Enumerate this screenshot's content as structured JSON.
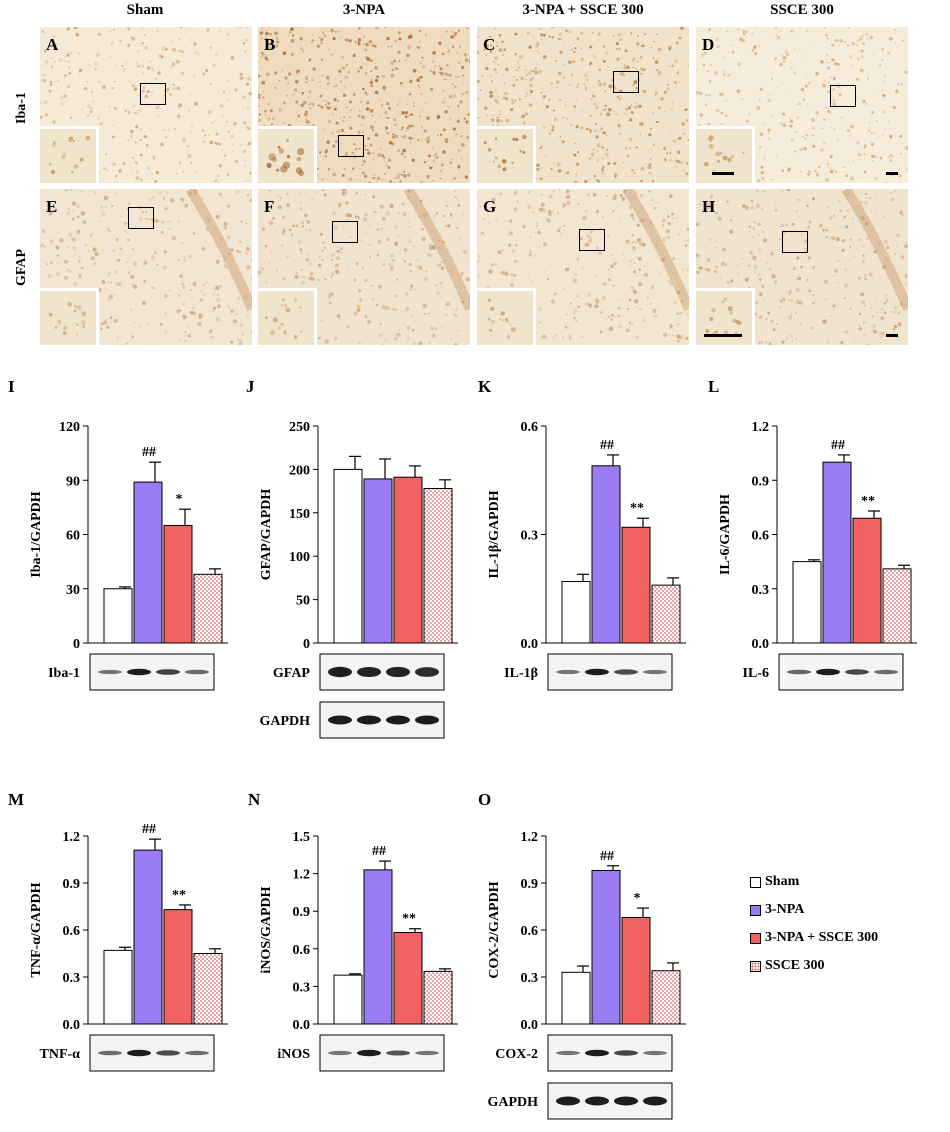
{
  "figure": {
    "column_titles": [
      "Sham",
      "3-NPA",
      "3-NPA + SSCE 300",
      "SSCE 300"
    ],
    "row_labels": [
      "Iba-1",
      "GFAP"
    ],
    "micro_panels": [
      {
        "letter": "A",
        "row": 0,
        "col": 0,
        "tone": "#f4ead6",
        "dot": "#c99a63",
        "density": 0.35
      },
      {
        "letter": "B",
        "row": 0,
        "col": 1,
        "tone": "#efdcbf",
        "dot": "#a8652e",
        "density": 0.9
      },
      {
        "letter": "C",
        "row": 0,
        "col": 2,
        "tone": "#f1e3cb",
        "dot": "#b37a42",
        "density": 0.6
      },
      {
        "letter": "D",
        "row": 0,
        "col": 3,
        "tone": "#f5ecd9",
        "dot": "#c9a06b",
        "density": 0.3
      },
      {
        "letter": "E",
        "row": 1,
        "col": 0,
        "tone": "#f2e6d2",
        "dot": "#c9a27a",
        "density": 0.3
      },
      {
        "letter": "F",
        "row": 1,
        "col": 1,
        "tone": "#f1e4cf",
        "dot": "#c49c72",
        "density": 0.35
      },
      {
        "letter": "G",
        "row": 1,
        "col": 2,
        "tone": "#f2e6d1",
        "dot": "#c7a078",
        "density": 0.3
      },
      {
        "letter": "H",
        "row": 1,
        "col": 3,
        "tone": "#f1e4cf",
        "dot": "#c49c72",
        "density": 0.3
      }
    ],
    "legend": [
      {
        "label": "Sham",
        "fill": "#ffffff",
        "pattern": "none"
      },
      {
        "label": "3-NPA",
        "fill": "#9b7bf2",
        "pattern": "none"
      },
      {
        "label": "3-NPA + SSCE 300",
        "fill": "#f26262",
        "pattern": "none"
      },
      {
        "label": "SSCE 300",
        "fill": "#ffffff",
        "pattern": "dots"
      }
    ],
    "colors": {
      "sham": "#ffffff",
      "npa": "#9b7bf2",
      "npa_ssce": "#f26262",
      "ssce_dots": "#e06060"
    }
  },
  "chart_data": [
    {
      "panel": "I",
      "type": "bar",
      "ylabel": "Iba-1/GAPDH",
      "ylim": [
        0,
        120
      ],
      "ticks": [
        "0",
        "30",
        "60",
        "90",
        "120"
      ],
      "categories": [
        "Sham",
        "3-NPA",
        "3-NPA + SSCE 300",
        "SSCE 300"
      ],
      "values": [
        30,
        89,
        65,
        38
      ],
      "errors": [
        1,
        11,
        9,
        3
      ],
      "marks": [
        "",
        "##",
        "*",
        ""
      ],
      "blots": [
        "Iba-1"
      ]
    },
    {
      "panel": "J",
      "type": "bar",
      "ylabel": "GFAP/GAPDH",
      "ylim": [
        0,
        250
      ],
      "ticks": [
        "0",
        "50",
        "100",
        "150",
        "200",
        "250"
      ],
      "categories": [
        "Sham",
        "3-NPA",
        "3-NPA + SSCE 300",
        "SSCE 300"
      ],
      "values": [
        200,
        189,
        191,
        178
      ],
      "errors": [
        15,
        23,
        13,
        10
      ],
      "marks": [
        "",
        "",
        "",
        ""
      ],
      "blots": [
        "GFAP",
        "GAPDH"
      ]
    },
    {
      "panel": "K",
      "type": "bar",
      "ylabel": "IL-1β/GAPDH",
      "ylim": [
        0,
        0.6
      ],
      "ticks": [
        "0.0",
        "0.3",
        "0.6"
      ],
      "categories": [
        "Sham",
        "3-NPA",
        "3-NPA + SSCE 300",
        "SSCE 300"
      ],
      "values": [
        0.17,
        0.49,
        0.32,
        0.16
      ],
      "errors": [
        0.02,
        0.03,
        0.025,
        0.02
      ],
      "marks": [
        "",
        "##",
        "**",
        ""
      ],
      "blots": [
        "IL-1β"
      ]
    },
    {
      "panel": "L",
      "type": "bar",
      "ylabel": "IL-6/GAPDH",
      "ylim": [
        0,
        1.2
      ],
      "ticks": [
        "0.0",
        "0.3",
        "0.6",
        "0.9",
        "1.2"
      ],
      "categories": [
        "Sham",
        "3-NPA",
        "3-NPA + SSCE 300",
        "SSCE 300"
      ],
      "values": [
        0.45,
        1.0,
        0.69,
        0.41
      ],
      "errors": [
        0.01,
        0.04,
        0.04,
        0.02
      ],
      "marks": [
        "",
        "##",
        "**",
        ""
      ],
      "blots": [
        "IL-6"
      ]
    },
    {
      "panel": "M",
      "type": "bar",
      "ylabel": "TNF-α/GAPDH",
      "ylim": [
        0,
        1.2
      ],
      "ticks": [
        "0.0",
        "0.3",
        "0.6",
        "0.9",
        "1.2"
      ],
      "categories": [
        "Sham",
        "3-NPA",
        "3-NPA + SSCE 300",
        "SSCE 300"
      ],
      "values": [
        0.47,
        1.11,
        0.73,
        0.45
      ],
      "errors": [
        0.02,
        0.07,
        0.03,
        0.03
      ],
      "marks": [
        "",
        "##",
        "**",
        ""
      ],
      "blots": [
        "TNF-α"
      ]
    },
    {
      "panel": "N",
      "type": "bar",
      "ylabel": "iNOS/GAPDH",
      "ylim": [
        0,
        1.5
      ],
      "ticks": [
        "0.0",
        "0.3",
        "0.6",
        "0.9",
        "1.2",
        "1.5"
      ],
      "categories": [
        "Sham",
        "3-NPA",
        "3-NPA + SSCE 300",
        "SSCE 300"
      ],
      "values": [
        0.39,
        1.23,
        0.73,
        0.42
      ],
      "errors": [
        0.01,
        0.07,
        0.03,
        0.02
      ],
      "marks": [
        "",
        "##",
        "**",
        ""
      ],
      "blots": [
        "iNOS"
      ]
    },
    {
      "panel": "O",
      "type": "bar",
      "ylabel": "COX-2/GAPDH",
      "ylim": [
        0,
        1.2
      ],
      "ticks": [
        "0.0",
        "0.3",
        "0.6",
        "0.9",
        "1.2"
      ],
      "categories": [
        "Sham",
        "3-NPA",
        "3-NPA + SSCE 300",
        "SSCE 300"
      ],
      "values": [
        0.33,
        0.98,
        0.68,
        0.34
      ],
      "errors": [
        0.04,
        0.03,
        0.06,
        0.05
      ],
      "marks": [
        "",
        "##",
        "*",
        ""
      ],
      "blots": [
        "COX-2",
        "GAPDH"
      ]
    }
  ]
}
